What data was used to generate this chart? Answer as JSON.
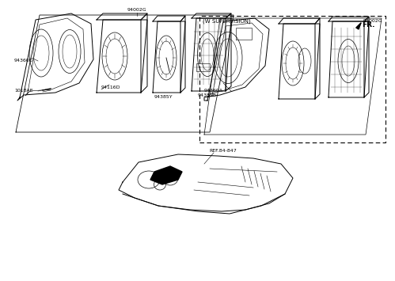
{
  "background_color": "#ffffff",
  "fr_label": "FR.",
  "ref_label": "REF.84-847",
  "supervision_label": "(W SUPERVISION)",
  "label_94002G_left": "94002G",
  "label_94385B": "94385B",
  "label_94385Y": "94385Y",
  "label_94116D": "94116D",
  "label_94360D": "94360D",
  "label_1018AE": "1018AE",
  "label_94002G_right": "94002G",
  "label_94360A": "94360A",
  "line_color": "#000000",
  "lw_main": 0.7,
  "lw_thin": 0.4,
  "font_size_label": 5.0,
  "font_size_small": 4.5
}
